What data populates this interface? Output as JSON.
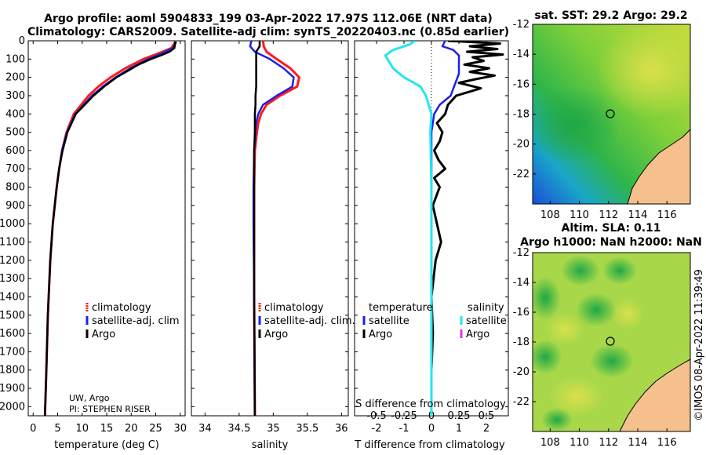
{
  "title_line1": "Argo profile: aoml 5904833_199 03-Apr-2022 17.97S 112.06E (NRT data)",
  "title_line2": "Climatology: CARS2009. Satellite-adj clim: synTS_20220403.nc (0.85d earlier)",
  "credit": "UW, Argo",
  "pi": "PI: STEPHEN RISER",
  "imos_stamp": "©IMOS 08-Apr-2022 11:39:49",
  "colors": {
    "climatology": "#ff1a1a",
    "satellite": "#1f1fe6",
    "argo": "#000000",
    "sal_sat": "#22e6f0",
    "sal_argo": "#e633e6",
    "land": "#f5c08c"
  },
  "chart_data": [
    {
      "type": "line",
      "id": "temperature",
      "xlabel": "temperature (deg C)",
      "ylim": [
        2050,
        0
      ],
      "xlim": [
        -1,
        31
      ],
      "xticks": [
        0,
        5,
        10,
        15,
        20,
        25,
        30
      ],
      "yticks": [
        0,
        100,
        200,
        300,
        400,
        500,
        600,
        700,
        800,
        900,
        1000,
        1100,
        1200,
        1300,
        1400,
        1500,
        1600,
        1700,
        1800,
        1900,
        2000
      ],
      "legend": [
        "climatology",
        "satellite-adj. clim",
        "Argo"
      ],
      "series": [
        {
          "name": "climatology",
          "depth": [
            5,
            40,
            70,
            100,
            150,
            200,
            250,
            300,
            400,
            500,
            600,
            700,
            800,
            1000,
            1200,
            1500,
            1800,
            2050
          ],
          "values": [
            29.0,
            28.2,
            25.5,
            22.5,
            18.8,
            15.8,
            13.3,
            11.3,
            8.3,
            6.8,
            5.9,
            5.3,
            4.8,
            4.0,
            3.5,
            3.0,
            2.7,
            2.4
          ]
        },
        {
          "name": "satellite-adj. clim",
          "depth": [
            5,
            40,
            70,
            100,
            150,
            200,
            250,
            300,
            400,
            500,
            600,
            700,
            800,
            1000,
            1200,
            1500,
            1800,
            2050
          ],
          "values": [
            29.2,
            28.5,
            26.2,
            23.5,
            19.8,
            16.8,
            14.2,
            12.0,
            8.6,
            6.9,
            5.9,
            5.3,
            4.8,
            4.0,
            3.5,
            3.0,
            2.7,
            2.4
          ]
        },
        {
          "name": "Argo",
          "depth": [
            5,
            40,
            60,
            80,
            100,
            130,
            160,
            200,
            250,
            300,
            400,
            500,
            600,
            700,
            800,
            1000,
            1200,
            1500,
            1800,
            2050
          ],
          "values": [
            29.0,
            28.8,
            27.8,
            26.0,
            24.0,
            21.5,
            19.6,
            17.0,
            14.5,
            12.3,
            8.7,
            7.0,
            6.0,
            5.3,
            4.8,
            4.0,
            3.5,
            3.0,
            2.7,
            2.4
          ]
        }
      ]
    },
    {
      "type": "line",
      "id": "salinity",
      "xlabel": "salinity",
      "ylim": [
        2050,
        0
      ],
      "xlim": [
        33.8,
        36.1
      ],
      "xticks": [
        34,
        34.5,
        35,
        35.5,
        36
      ],
      "tick_labels": [
        "34",
        "34.5",
        "35",
        "35.5",
        "36"
      ],
      "legend": [
        "climatology",
        "satellite-adj. clim.",
        "Argo"
      ],
      "series": [
        {
          "name": "climatology",
          "depth": [
            0,
            30,
            60,
            100,
            150,
            200,
            250,
            300,
            350,
            400,
            450,
            500,
            600,
            800,
            1000,
            1400,
            2050
          ],
          "values": [
            34.85,
            34.86,
            34.9,
            35.05,
            35.25,
            35.38,
            35.35,
            35.1,
            34.9,
            34.82,
            34.78,
            34.76,
            34.73,
            34.72,
            34.72,
            34.72,
            34.73
          ]
        },
        {
          "name": "satellite-adj. clim.",
          "depth": [
            0,
            30,
            60,
            100,
            150,
            200,
            250,
            300,
            350,
            400,
            450,
            500,
            600,
            800,
            1000,
            1400,
            2050
          ],
          "values": [
            34.68,
            34.66,
            34.73,
            34.95,
            35.15,
            35.3,
            35.28,
            35.05,
            34.85,
            34.78,
            34.75,
            34.74,
            34.72,
            34.71,
            34.71,
            34.72,
            34.73
          ]
        },
        {
          "name": "Argo",
          "depth": [
            0,
            30,
            60,
            100,
            150,
            200,
            250,
            300,
            350,
            400,
            450,
            500,
            600,
            800,
            1000,
            1400,
            2050
          ],
          "values": [
            34.8,
            34.8,
            34.75,
            34.75,
            34.75,
            34.75,
            34.75,
            34.74,
            34.74,
            34.73,
            34.73,
            34.73,
            34.72,
            34.72,
            34.72,
            34.72,
            34.73
          ]
        }
      ]
    },
    {
      "type": "line",
      "id": "differences",
      "xlabel": "T difference from climatology",
      "xlabel_top": "S difference from climatology",
      "ylim": [
        2050,
        0
      ],
      "xlim": [
        -2.8,
        2.8
      ],
      "xticks": [
        -2,
        -1,
        0,
        1,
        2
      ],
      "sticks": [
        -0.5,
        -0.25,
        0,
        0.25,
        0.5
      ],
      "stick_labels": [
        "-0.5",
        "-0.25",
        "0",
        "0.25",
        "0.5"
      ],
      "legend_headers": [
        "temperature",
        "salinity"
      ],
      "legend_left": [
        "satellite",
        "Argo"
      ],
      "legend_right": [
        "satellite",
        "Argo"
      ],
      "series": [
        {
          "name": "T satellite",
          "depth": [
            0,
            30,
            50,
            80,
            110,
            140,
            180,
            220,
            260,
            300,
            350,
            400,
            500,
            700,
            1000,
            1400,
            2050
          ],
          "values": [
            0.5,
            0.4,
            0.8,
            1.0,
            1.0,
            1.0,
            1.0,
            0.9,
            0.8,
            0.7,
            0.3,
            0.1,
            0.0,
            0.0,
            0.0,
            0.0,
            0.0
          ]
        },
        {
          "name": "T Argo",
          "depth": [
            0,
            15,
            30,
            45,
            60,
            75,
            90,
            110,
            130,
            150,
            170,
            190,
            210,
            230,
            260,
            300,
            350,
            400,
            450,
            500,
            550,
            600,
            650,
            700,
            750,
            800,
            900,
            1000,
            1100,
            1200,
            1400,
            1600,
            1800,
            2050
          ],
          "values": [
            0.6,
            2.5,
            1.4,
            2.4,
            1.3,
            2.6,
            1.5,
            1.9,
            1.2,
            2.1,
            1.4,
            2.3,
            1.6,
            1.0,
            1.8,
            0.9,
            0.6,
            0.5,
            0.2,
            0.4,
            0.3,
            0.1,
            0.25,
            0.5,
            0.1,
            0.3,
            0.05,
            0.2,
            0.35,
            0.15,
            0.0,
            0.05,
            0.0,
            0.0
          ]
        },
        {
          "name": "S satellite",
          "depth": [
            0,
            20,
            50,
            80,
            100,
            120,
            150,
            200,
            250,
            300,
            400,
            500,
            800,
            1200,
            2050
          ],
          "values": [
            -0.15,
            -0.2,
            -0.35,
            -0.42,
            -0.4,
            -0.38,
            -0.35,
            -0.25,
            -0.1,
            -0.05,
            0.0,
            -0.01,
            0.0,
            0.0,
            0.0
          ]
        }
      ]
    }
  ],
  "maps": [
    {
      "title": "sat. SST: 29.2 Argo: 29.2",
      "yticks": [
        "-12",
        "-14",
        "-16",
        "-18",
        "-20",
        "-22"
      ],
      "xticks": [
        "108",
        "110",
        "112",
        "114",
        "116"
      ]
    },
    {
      "title_line1": "Altim. SLA: 0.11",
      "title_line2": "Argo h1000: NaN h2000: NaN",
      "yticks": [
        "-12",
        "-14",
        "-16",
        "-18",
        "-20",
        "-22"
      ],
      "xticks": [
        "108",
        "110",
        "112",
        "114",
        "116"
      ]
    }
  ]
}
